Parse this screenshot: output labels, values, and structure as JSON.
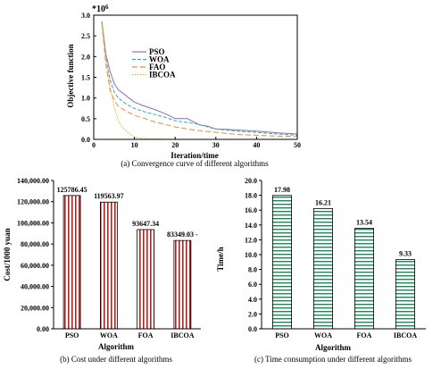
{
  "chart_data": [
    {
      "type": "line",
      "caption": "(a) Convergence curve of different algorithms",
      "xlabel": "Iteration/time",
      "ylabel": "Objective function",
      "multiplier": "*10",
      "multiplier_exp": "6",
      "xlim": [
        0,
        50
      ],
      "ylim": [
        0,
        3.0
      ],
      "xticks": [
        "0",
        "10",
        "20",
        "30",
        "40",
        "50"
      ],
      "yticks": [
        "0.0",
        "0.5",
        "1.0",
        "1.5",
        "2.0",
        "2.5",
        "3.0"
      ],
      "legend_position": "top-right",
      "series": [
        {
          "name": "PSO",
          "color": "#8e6bc7",
          "dash": "none",
          "x": [
            2,
            3,
            4,
            5,
            6,
            8,
            10,
            12,
            15,
            18,
            20,
            23,
            26,
            28,
            30,
            33,
            36,
            40,
            45,
            50
          ],
          "y": [
            2.85,
            2.05,
            1.65,
            1.35,
            1.2,
            1.05,
            0.9,
            0.82,
            0.72,
            0.6,
            0.5,
            0.5,
            0.35,
            0.32,
            0.25,
            0.24,
            0.22,
            0.2,
            0.16,
            0.13
          ]
        },
        {
          "name": "WOA",
          "color": "#2ab0a8",
          "dash": "4,2",
          "x": [
            2,
            3,
            4,
            5,
            6,
            8,
            10,
            12,
            15,
            18,
            20,
            25,
            30,
            35,
            40,
            45,
            50
          ],
          "y": [
            2.85,
            1.95,
            1.45,
            1.15,
            1.0,
            0.85,
            0.75,
            0.68,
            0.6,
            0.52,
            0.45,
            0.38,
            0.25,
            0.2,
            0.17,
            0.13,
            0.1
          ]
        },
        {
          "name": "FAO",
          "color": "#e88a3a",
          "dash": "6,3",
          "x": [
            2,
            3,
            4,
            5,
            6,
            8,
            10,
            12,
            15,
            18,
            20,
            25,
            30,
            35,
            40,
            45,
            50
          ],
          "y": [
            2.8,
            1.8,
            1.2,
            0.95,
            0.8,
            0.68,
            0.58,
            0.52,
            0.42,
            0.35,
            0.3,
            0.22,
            0.17,
            0.12,
            0.1,
            0.08,
            0.07
          ]
        },
        {
          "name": "IBCOA",
          "color": "#e8b020",
          "dash": "1.5,1.5",
          "x": [
            2,
            3,
            4,
            5,
            6,
            7,
            8,
            9,
            10,
            12,
            15,
            20,
            30,
            40,
            50
          ],
          "y": [
            2.85,
            2.0,
            1.3,
            0.8,
            0.45,
            0.3,
            0.2,
            0.12,
            0.05,
            0.02,
            0.01,
            0.0,
            0.0,
            0.0,
            0.0
          ]
        }
      ]
    },
    {
      "type": "bar",
      "caption": "(b) Cost under different algorithms",
      "xlabel": "Algorithm",
      "ylabel": "Cost/1000 yuan",
      "categories": [
        "PSO",
        "WOA",
        "FOA",
        "IBCOA"
      ],
      "values": [
        125786.45,
        119563.97,
        93647.34,
        83349.03
      ],
      "value_labels": [
        "125786.45",
        "119563.97",
        "93647.34",
        "83349.03 -"
      ],
      "ylim": [
        0,
        140000
      ],
      "yticks": [
        "0.00",
        "20,000.00",
        "40,000.00",
        "60,000.00",
        "80,000.00",
        "100,000.00",
        "120,000.00",
        "140,000.00"
      ],
      "bar_fill": "#b22222"
    },
    {
      "type": "bar",
      "caption": "(c) Time consumption under different algorithms",
      "xlabel": "Algorithm",
      "ylabel": "Time/h",
      "categories": [
        "PSO",
        "WOA",
        "FOA",
        "IBCOA"
      ],
      "values": [
        17.98,
        16.21,
        13.54,
        9.33
      ],
      "value_labels": [
        "17.98",
        "16.21",
        "13.54",
        "9.33"
      ],
      "ylim": [
        0,
        20
      ],
      "yticks": [
        "0.0",
        "2.0",
        "4.0",
        "6.0",
        "8.0",
        "10.0",
        "12.0",
        "14.0",
        "16.0",
        "18.0",
        "20.0"
      ],
      "bar_fill": "#1a8a5a"
    }
  ]
}
